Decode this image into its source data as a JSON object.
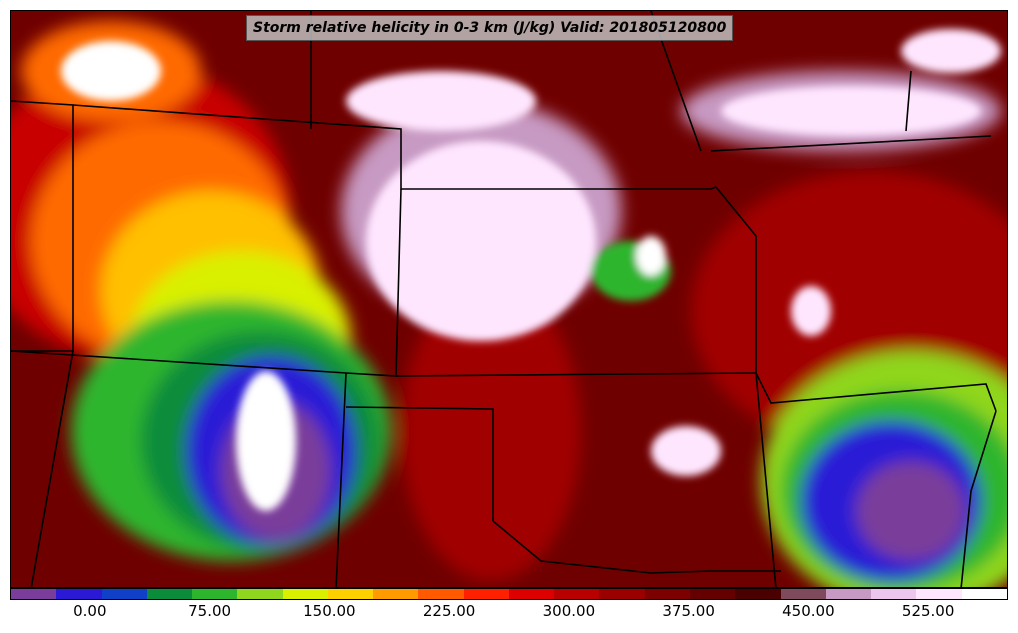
{
  "title": "Storm relative helicity in 0-3 km (J/kg) Valid: 201805120800",
  "colorbar": {
    "colors": [
      "#7a3d9a",
      "#2a1ad6",
      "#1040c8",
      "#0a8c3a",
      "#2db52d",
      "#8fd61f",
      "#d9f000",
      "#ffd000",
      "#ff9b00",
      "#ff5a00",
      "#ff2000",
      "#dd0000",
      "#b80000",
      "#9a0000",
      "#7d0000",
      "#640000",
      "#4a0000",
      "#7e4a5c",
      "#c79ac3",
      "#ecc6ec",
      "#ffe6ff",
      "#ffffff"
    ],
    "tick_labels": [
      "0.00",
      "75.00",
      "150.00",
      "225.00",
      "300.00",
      "375.00",
      "450.00",
      "525.00"
    ],
    "tick_values": [
      0,
      75,
      150,
      225,
      300,
      375,
      450,
      525
    ],
    "range": [
      -50,
      575
    ]
  }
}
